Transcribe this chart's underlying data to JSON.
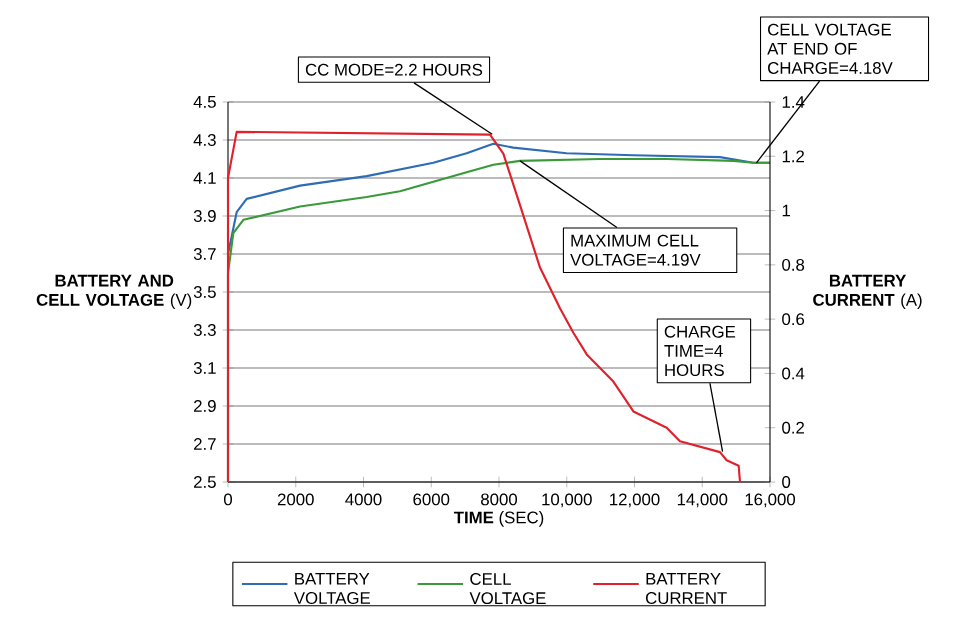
{
  "chart_data": {
    "type": "line",
    "xlabel": "**TIME** (SEC)",
    "ylabel": "**BATTERY AND CELL VOLTAGE** (V)",
    "y2label": "**BATTERY CURRENT** (A)",
    "xlim": [
      0,
      16000
    ],
    "ylim": [
      2.5,
      4.5
    ],
    "y2lim": [
      0,
      1.4
    ],
    "xticks": [
      0,
      2000,
      4000,
      6000,
      8000,
      {
        "value": 10000,
        "label": "10,000"
      },
      {
        "value": 12000,
        "label": "12,000"
      },
      {
        "value": 14000,
        "label": "14,000"
      },
      {
        "value": 16000,
        "label": "16,000"
      }
    ],
    "yticks": [
      2.5,
      2.7,
      2.9,
      3.1,
      3.3,
      3.5,
      3.7,
      3.9,
      4.1,
      4.3,
      4.5
    ],
    "y2ticks": [
      0,
      0.2,
      0.4,
      0.6,
      0.8,
      1,
      1.2,
      1.4
    ],
    "grid": "y",
    "legend": "bottom",
    "series": [
      {
        "name": "BATTERY VOLTAGE",
        "color": "#2e6db4",
        "x": [
          0,
          256,
          551,
          2126,
          4094,
          6062,
          7045,
          7833,
          8423,
          9997,
          11967,
          14524,
          15508,
          16000
        ],
        "values": [
          3.7,
          3.92,
          3.99,
          4.06,
          4.11,
          4.18,
          4.23,
          4.28,
          4.26,
          4.23,
          4.22,
          4.21,
          4.18,
          4.18
        ]
      },
      {
        "name": "CELL VOLTAGE",
        "color": "#3a9a3a",
        "x": [
          0,
          0,
          157,
          453,
          2126,
          4094,
          5078,
          6062,
          7045,
          7833,
          8620,
          10980,
          12950,
          14917,
          15508,
          16000
        ],
        "values": [
          2.5,
          3.6,
          3.81,
          3.88,
          3.95,
          4.0,
          4.03,
          4.08,
          4.13,
          4.17,
          4.19,
          4.2,
          4.2,
          4.19,
          4.18,
          4.18
        ]
      },
      {
        "name": "BATTERY CURRENT",
        "color": "#e0212b",
        "axis": "y2",
        "x": [
          0,
          0,
          256,
          7734,
          8128,
          8620,
          9210,
          9800,
          10195,
          10590,
          11376,
          11967,
          12950,
          13343,
          14524,
          14720,
          15075,
          15114
        ],
        "values": [
          0,
          1.12,
          1.29,
          1.28,
          1.21,
          1.02,
          0.79,
          0.64,
          0.55,
          0.47,
          0.37,
          0.26,
          0.2,
          0.15,
          0.11,
          0.08,
          0.06,
          0
        ]
      }
    ],
    "annotations": [
      {
        "text": "CC MODE=2.2 HOURS",
        "x": 7800,
        "y": 4.33
      },
      {
        "text": "CELL VOLTAGE AT END OF CHARGE=4.18V",
        "x": 15600,
        "y": 4.18
      },
      {
        "text": "MAXIMUM CELL VOLTAGE=4.19V",
        "x": 8620,
        "y": 4.19
      },
      {
        "text": "CHARGE TIME=4 HOURS",
        "x": 14600,
        "y": 2.66
      }
    ]
  }
}
